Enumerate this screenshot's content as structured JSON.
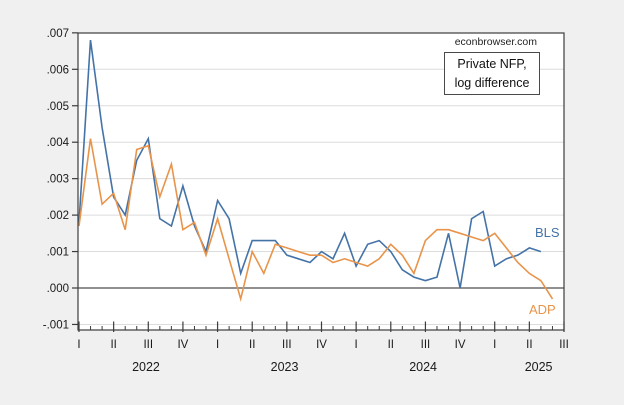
{
  "page": {
    "background_color": "#f0f0f0",
    "plot_background": "#ffffff",
    "frame_color": "#3c3c3c",
    "grid_color": "#dcdcdc",
    "zero_line_color": "#4d4d4d",
    "tick_color": "#3c3c3c",
    "text_color": "#1a1a1a"
  },
  "header": {
    "watermark": "econbrowser.com"
  },
  "annotation": {
    "line1": "Private NFP,",
    "line2": "log difference"
  },
  "chart_data": {
    "type": "line",
    "title": "Private NFP, log difference",
    "x_start": "2022M01",
    "x_end": "2025M07",
    "x_unit": "month",
    "grid": "horizontal",
    "legend_position": "inline-right",
    "ylim": [
      -0.001,
      0.007
    ],
    "y_ticks": [
      {
        "label": ".007",
        "value": 0.007
      },
      {
        "label": ".006",
        "value": 0.006
      },
      {
        "label": ".005",
        "value": 0.005
      },
      {
        "label": ".004",
        "value": 0.004
      },
      {
        "label": ".003",
        "value": 0.003
      },
      {
        "label": ".002",
        "value": 0.002
      },
      {
        "label": ".001",
        "value": 0.001
      },
      {
        "label": ".000",
        "value": 0.0
      },
      {
        "label": "-.001",
        "value": -0.001
      }
    ],
    "x_quarter_ticks": [
      {
        "label": "I",
        "month": 0
      },
      {
        "label": "II",
        "month": 3
      },
      {
        "label": "III",
        "month": 6
      },
      {
        "label": "IV",
        "month": 9
      },
      {
        "label": "I",
        "month": 12
      },
      {
        "label": "II",
        "month": 15
      },
      {
        "label": "III",
        "month": 18
      },
      {
        "label": "IV",
        "month": 21
      },
      {
        "label": "I",
        "month": 24
      },
      {
        "label": "II",
        "month": 27
      },
      {
        "label": "III",
        "month": 30
      },
      {
        "label": "IV",
        "month": 33
      },
      {
        "label": "I",
        "month": 36
      },
      {
        "label": "II",
        "month": 39
      },
      {
        "label": "III",
        "month": 42
      }
    ],
    "x_year_labels": [
      {
        "label": "2022",
        "month": 5.8
      },
      {
        "label": "2023",
        "month": 17.8
      },
      {
        "label": "2024",
        "month": 29.8
      },
      {
        "label": "2025",
        "month": 39.8
      }
    ],
    "series": [
      {
        "name": "BLS",
        "color": "#4473a7",
        "start_month": 0,
        "values": [
          0.0018,
          0.0068,
          0.0044,
          0.0025,
          0.002,
          0.0035,
          0.0041,
          0.0019,
          0.0017,
          0.0028,
          0.0017,
          0.001,
          0.0024,
          0.0019,
          0.0004,
          0.0013,
          0.0013,
          0.0013,
          0.0009,
          0.0008,
          0.0007,
          0.001,
          0.0008,
          0.0015,
          0.0006,
          0.0012,
          0.0013,
          0.001,
          0.0005,
          0.0003,
          0.0002,
          0.0003,
          0.0015,
          0.0,
          0.0019,
          0.0021,
          0.0006,
          0.0008,
          0.0009,
          0.0011,
          0.001
        ]
      },
      {
        "name": "ADP",
        "color": "#e8944a",
        "start_month": 0,
        "values": [
          0.0017,
          0.0041,
          0.0023,
          0.0026,
          0.0016,
          0.0038,
          0.0039,
          0.0025,
          0.0034,
          0.0016,
          0.0018,
          0.0009,
          0.0019,
          0.0008,
          -0.0003,
          0.001,
          0.0004,
          0.0012,
          0.0011,
          0.001,
          0.0009,
          0.0009,
          0.0007,
          0.0008,
          0.0007,
          0.0006,
          0.0008,
          0.0012,
          0.0009,
          0.0004,
          0.0013,
          0.0016,
          0.0016,
          0.0015,
          0.0014,
          0.0013,
          0.0015,
          0.0011,
          0.0007,
          0.0004,
          0.0002,
          -0.0003
        ]
      }
    ]
  }
}
